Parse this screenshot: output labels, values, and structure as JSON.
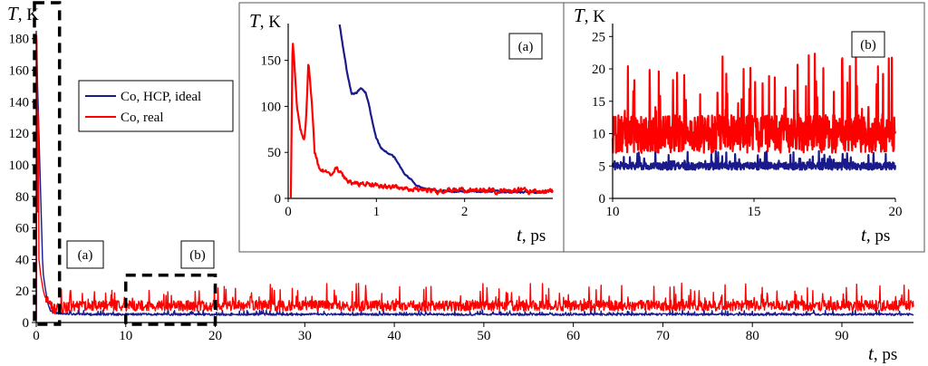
{
  "chart_data": [
    {
      "type": "line",
      "panel": "main",
      "ylabel_var": "T",
      "ylabel_unit": ", K",
      "xlabel_var": "t",
      "xlabel_unit": ", ps",
      "xlim": [
        0,
        98
      ],
      "ylim": [
        0,
        185
      ],
      "x_ticks": [
        0,
        10,
        20,
        30,
        40,
        50,
        60,
        70,
        80,
        90
      ],
      "y_ticks": [
        0,
        20,
        40,
        60,
        80,
        100,
        120,
        140,
        160,
        180
      ],
      "legend": {
        "position": "left-middle",
        "entries": [
          "Co, HCP, ideal",
          "Co, real"
        ]
      },
      "annotations": [
        {
          "label": "(a)",
          "x_range": [
            0,
            2.6
          ],
          "y_range": [
            0,
            185
          ]
        },
        {
          "label": "(b)",
          "x_range": [
            10,
            20
          ],
          "y_range": [
            0,
            30
          ]
        }
      ],
      "series": [
        {
          "name": "Co, HCP, ideal",
          "color": "#1a1a8c",
          "points": [
            [
              0,
              0
            ],
            [
              0.05,
              180
            ],
            [
              0.15,
              150
            ],
            [
              0.3,
              120
            ],
            [
              0.5,
              80
            ],
            [
              0.7,
              40
            ],
            [
              0.8,
              30
            ],
            [
              1.0,
              22
            ],
            [
              1.3,
              12
            ],
            [
              1.6,
              7
            ],
            [
              2.0,
              6
            ],
            [
              5,
              5
            ],
            [
              98,
              5
            ]
          ],
          "noise": {
            "mean": 5,
            "amplitude": 3
          }
        },
        {
          "name": "Co, real",
          "color": "#ff0000",
          "points": [
            [
              0,
              0
            ],
            [
              0.05,
              182
            ],
            [
              0.15,
              70
            ],
            [
              0.22,
              160
            ],
            [
              0.3,
              40
            ],
            [
              0.5,
              30
            ],
            [
              0.8,
              20
            ],
            [
              1.2,
              12
            ],
            [
              1.6,
              10
            ],
            [
              2.0,
              8
            ],
            [
              5,
              10
            ],
            [
              98,
              10
            ]
          ],
          "noise": {
            "mean": 10,
            "amplitude": 15
          }
        }
      ]
    },
    {
      "type": "line",
      "panel": "(a)",
      "ylabel_var": "T",
      "ylabel_unit": ", K",
      "xlabel_var": "t",
      "xlabel_unit": ", ps",
      "xlim": [
        0,
        3
      ],
      "ylim": [
        0,
        190
      ],
      "x_ticks": [
        0,
        1,
        2
      ],
      "y_ticks": [
        0,
        50,
        100,
        150
      ],
      "series": [
        {
          "name": "Co, HCP, ideal",
          "color": "#1a1a8c",
          "points": [
            [
              0.58,
              190
            ],
            [
              0.62,
              165
            ],
            [
              0.68,
              130
            ],
            [
              0.72,
              112
            ],
            [
              0.78,
              115
            ],
            [
              0.83,
              120
            ],
            [
              0.88,
              115
            ],
            [
              0.92,
              100
            ],
            [
              0.96,
              80
            ],
            [
              1.0,
              65
            ],
            [
              1.05,
              55
            ],
            [
              1.12,
              50
            ],
            [
              1.2,
              45
            ],
            [
              1.25,
              38
            ],
            [
              1.3,
              30
            ],
            [
              1.38,
              22
            ],
            [
              1.45,
              14
            ],
            [
              1.55,
              10
            ],
            [
              1.7,
              8
            ],
            [
              2.0,
              8
            ],
            [
              2.5,
              7
            ],
            [
              3.0,
              7
            ]
          ],
          "noise": {
            "mean": 0,
            "amplitude": 1.5
          }
        },
        {
          "name": "Co, real",
          "color": "#ff0000",
          "points": [
            [
              0.03,
              0
            ],
            [
              0.05,
              175
            ],
            [
              0.07,
              150
            ],
            [
              0.1,
              100
            ],
            [
              0.14,
              75
            ],
            [
              0.18,
              65
            ],
            [
              0.2,
              80
            ],
            [
              0.23,
              150
            ],
            [
              0.27,
              100
            ],
            [
              0.3,
              50
            ],
            [
              0.35,
              35
            ],
            [
              0.4,
              30
            ],
            [
              0.45,
              25
            ],
            [
              0.5,
              22
            ],
            [
              0.55,
              35
            ],
            [
              0.6,
              25
            ],
            [
              0.7,
              18
            ],
            [
              0.8,
              15
            ],
            [
              0.9,
              16
            ],
            [
              1.0,
              13
            ],
            [
              1.2,
              12
            ],
            [
              1.4,
              11
            ],
            [
              1.6,
              9
            ],
            [
              1.8,
              8
            ],
            [
              2.0,
              8
            ],
            [
              2.3,
              9
            ],
            [
              2.6,
              8
            ],
            [
              3.0,
              8
            ]
          ],
          "noise": {
            "mean": 0,
            "amplitude": 4
          }
        }
      ]
    },
    {
      "type": "line",
      "panel": "(b)",
      "ylabel_var": "T",
      "ylabel_unit": ", K",
      "xlabel_var": "t",
      "xlabel_unit": ", ps",
      "xlim": [
        10,
        20
      ],
      "ylim": [
        0,
        27
      ],
      "x_ticks": [
        10,
        15,
        20
      ],
      "y_ticks": [
        0,
        5,
        10,
        15,
        20,
        25
      ],
      "series": [
        {
          "name": "Co, HCP, ideal",
          "color": "#1a1a8c",
          "noise": {
            "mean": 5,
            "amplitude": 2.5
          }
        },
        {
          "name": "Co, real",
          "color": "#ff0000",
          "noise": {
            "mean": 10,
            "amplitude": 13
          }
        }
      ]
    }
  ]
}
